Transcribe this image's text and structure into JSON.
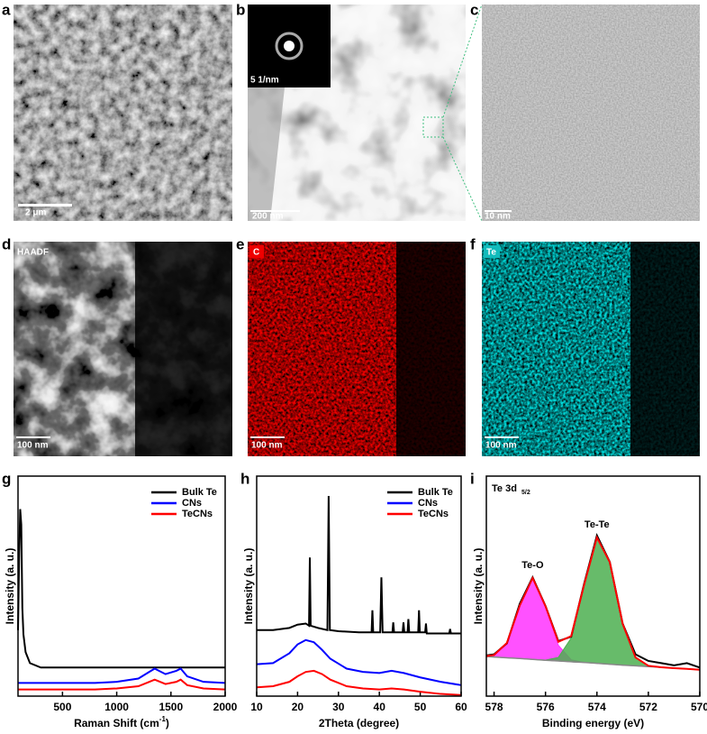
{
  "panels": [
    {
      "letter": "a",
      "scale_bar": "2 μm"
    },
    {
      "letter": "b",
      "scale_bar": "200 nm",
      "inset_scale_bar": "5 1/nm"
    },
    {
      "letter": "c",
      "scale_bar": "10 nm"
    },
    {
      "letter": "d",
      "scale_bar": "100 nm",
      "tag": "HAADF"
    },
    {
      "letter": "e",
      "scale_bar": "100 nm",
      "tag": "C"
    },
    {
      "letter": "f",
      "scale_bar": "100 nm",
      "tag": "Te"
    }
  ],
  "chart_data": [
    {
      "type": "line",
      "panel": "g",
      "x_label": "Raman Shift (cm",
      "x_label_sup": "-1",
      "x_label_tail": ")",
      "y_label": "Intensity (a. u.)",
      "xlim": [
        90,
        2000
      ],
      "ylim": [
        0,
        100
      ],
      "xticks": [
        500,
        1000,
        1500,
        2000
      ],
      "legend": "upper right",
      "x": [
        90,
        100,
        110,
        120,
        130,
        140,
        160,
        200,
        300,
        500,
        800,
        1000,
        1200,
        1300,
        1350,
        1450,
        1550,
        1590,
        1650,
        1800,
        2000
      ],
      "series": [
        {
          "name": "Bulk Te",
          "color": "#000000",
          "values": [
            30,
            62,
            85,
            78,
            40,
            28,
            20,
            15,
            13,
            13,
            13,
            13,
            13,
            13,
            13,
            13,
            13,
            13,
            13,
            13,
            13
          ]
        },
        {
          "name": "CNs",
          "color": "#0000ff",
          "values": [
            6,
            6,
            6,
            6,
            6,
            6,
            6,
            6,
            6,
            6,
            6,
            6.5,
            8,
            11,
            12.5,
            10,
            11.5,
            12.5,
            9,
            6.5,
            6
          ]
        },
        {
          "name": "TeCNs",
          "color": "#ff0000",
          "values": [
            3,
            3,
            3,
            3,
            3,
            3,
            3,
            3,
            3,
            3,
            3,
            3.5,
            4.5,
            6.5,
            7.5,
            5.5,
            6.5,
            7.5,
            5,
            3.5,
            3
          ]
        }
      ]
    },
    {
      "type": "line",
      "panel": "h",
      "x_label": "2Theta (degree)",
      "y_label": "Intensity (a. u.)",
      "xlim": [
        10,
        60
      ],
      "ylim": [
        0,
        100
      ],
      "xticks": [
        10,
        20,
        30,
        40,
        50,
        60
      ],
      "legend": "upper right",
      "series": [
        {
          "name": "Bulk Te",
          "color": "#000000",
          "x": [
            10,
            14,
            18,
            20,
            22,
            22.8,
            23,
            23.2,
            25,
            27.3,
            27.6,
            27.9,
            30,
            35,
            38.1,
            38.3,
            38.5,
            40.2,
            40.5,
            40.8,
            43.2,
            43.4,
            43.6,
            45.7,
            45.9,
            46.1,
            46.9,
            47.1,
            47.3,
            49.5,
            49.7,
            49.9,
            51.2,
            51.4,
            51.6,
            57.1,
            57.3,
            57.5,
            60
          ],
          "values": [
            30,
            30,
            31,
            32.5,
            33,
            32,
            63,
            32,
            31,
            30,
            91,
            30,
            29.5,
            29,
            29,
            39,
            29,
            29,
            54,
            29,
            29,
            33.5,
            29,
            29,
            33.5,
            29,
            29,
            35,
            29,
            29,
            39,
            29,
            29,
            33,
            28.5,
            28.5,
            30.5,
            28.5,
            28.5
          ]
        },
        {
          "name": "CNs",
          "color": "#0000ff",
          "x": [
            10,
            14,
            18,
            20,
            22,
            24,
            26,
            28,
            32,
            36,
            40,
            43,
            46,
            50,
            55,
            60
          ],
          "values": [
            14.5,
            15,
            19.5,
            23.5,
            25.5,
            24.5,
            21,
            17,
            12.5,
            11,
            10.5,
            11.5,
            10.5,
            8.5,
            6.5,
            5
          ]
        },
        {
          "name": "TeCNs",
          "color": "#ff0000",
          "x": [
            10,
            14,
            18,
            20,
            22,
            24,
            26,
            28,
            32,
            36,
            40,
            43,
            46,
            50,
            55,
            60
          ],
          "values": [
            4,
            4.5,
            6.5,
            9,
            11,
            11.5,
            10,
            7.5,
            4.5,
            3.5,
            3,
            3.5,
            3,
            2,
            1,
            0.5
          ]
        }
      ]
    },
    {
      "type": "xps",
      "panel": "i",
      "title": "Te 3d",
      "title_sub": "5/2",
      "x_label": "Binding energy (eV)",
      "y_label": "Intensity (a. u.)",
      "xlim": [
        578.3,
        570
      ],
      "ylim": [
        0,
        100
      ],
      "xticks": [
        578,
        576,
        574,
        572,
        570
      ],
      "x": [
        578.3,
        578,
        577.5,
        577,
        576.5,
        576,
        575.5,
        575,
        574.5,
        574,
        573.5,
        573,
        572.5,
        572,
        571.5,
        571,
        570.5,
        570
      ],
      "baseline": {
        "color": "#888888",
        "values": [
          18,
          17.8,
          17.4,
          17.1,
          16.7,
          16.3,
          16,
          15.6,
          15.3,
          14.9,
          14.5,
          14.1,
          13.8,
          13.4,
          13.1,
          12.7,
          12.4,
          12
        ]
      },
      "series": [
        {
          "name": "Te-O",
          "color": "#ff33ff",
          "area": true,
          "values": [
            18.2,
            18.7,
            24.2,
            41.2,
            53.7,
            40.8,
            23.1,
            16.5,
            15.3,
            14.9,
            14.5,
            14.1,
            13.8,
            13.4,
            13.1,
            12.7,
            12.4,
            12
          ]
        },
        {
          "name": "Te-Te",
          "color": "#4caf50",
          "area": true,
          "values": [
            18,
            17.8,
            17.4,
            17.1,
            16.7,
            16.4,
            17.6,
            26.4,
            50.5,
            72.1,
            60.9,
            32.9,
            17.6,
            13.8,
            13.1,
            12.7,
            12.4,
            12
          ]
        },
        {
          "color": "#000000",
          "values": [
            18.5,
            19,
            24,
            42,
            54,
            41,
            25,
            27,
            51,
            73,
            61,
            33,
            19,
            16,
            15,
            14,
            15,
            13
          ]
        },
        {
          "color": "#ff0000",
          "values": [
            18.2,
            18.7,
            24.2,
            41.2,
            53.7,
            40.9,
            24.7,
            27.3,
            50.5,
            72.1,
            60.9,
            32.9,
            17.6,
            13.8,
            13.1,
            12.7,
            12.4,
            12
          ]
        }
      ]
    }
  ]
}
